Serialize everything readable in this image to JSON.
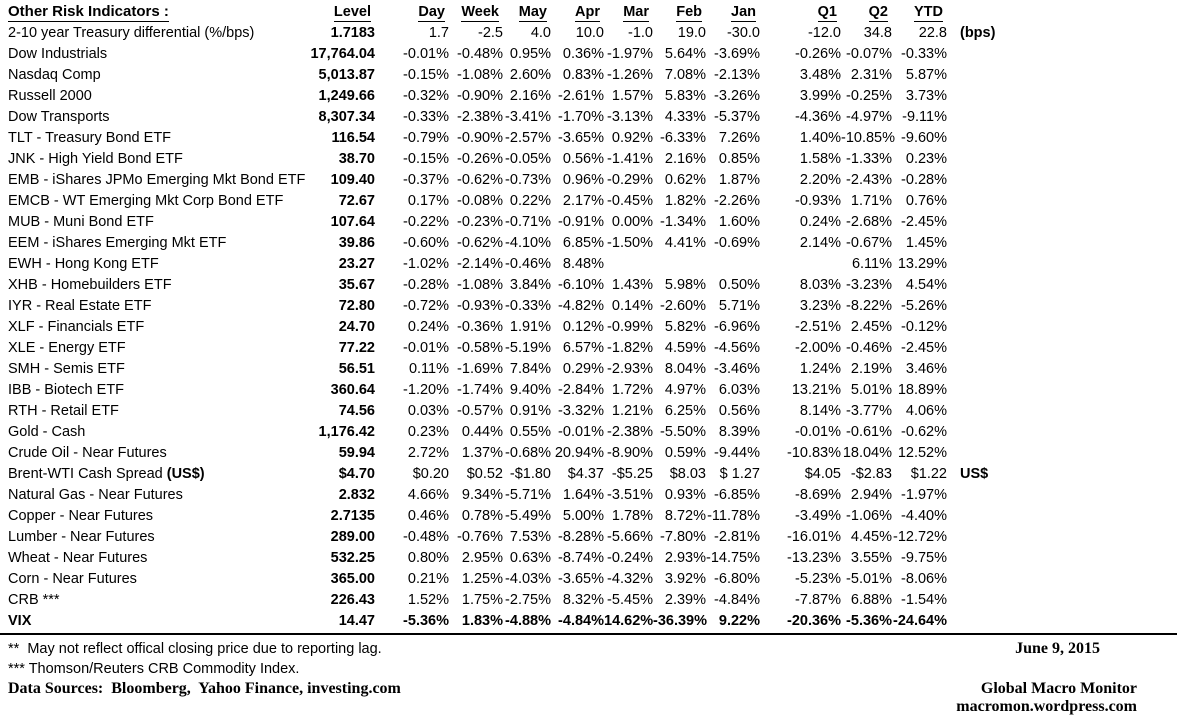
{
  "colors": {
    "text": "#000000",
    "background": "#ffffff"
  },
  "table": {
    "title": "Other Risk Indicators :",
    "columns": [
      "Level",
      "Day",
      "Week",
      "May",
      "Apr",
      "Mar",
      "Feb",
      "Jan",
      "Q1",
      "Q2",
      "YTD"
    ],
    "rows": [
      {
        "label": "2-10 year Treasury differential (%/bps)",
        "level": "1.7183",
        "values": [
          "1.7",
          "-2.5",
          "4.0",
          "10.0",
          "-1.0",
          "19.0",
          "-30.0",
          "-12.0",
          "34.8",
          "22.8"
        ],
        "note": "(bps)"
      },
      {
        "label": "Dow Industrials",
        "level": "17,764.04",
        "values": [
          "-0.01%",
          "-0.48%",
          "0.95%",
          "0.36%",
          "-1.97%",
          "5.64%",
          "-3.69%",
          "-0.26%",
          "-0.07%",
          "-0.33%"
        ],
        "note": ""
      },
      {
        "label": "Nasdaq Comp",
        "level": "5,013.87",
        "values": [
          "-0.15%",
          "-1.08%",
          "2.60%",
          "0.83%",
          "-1.26%",
          "7.08%",
          "-2.13%",
          "3.48%",
          "2.31%",
          "5.87%"
        ],
        "note": ""
      },
      {
        "label": "Russell 2000",
        "level": "1,249.66",
        "values": [
          "-0.32%",
          "-0.90%",
          "2.16%",
          "-2.61%",
          "1.57%",
          "5.83%",
          "-3.26%",
          "3.99%",
          "-0.25%",
          "3.73%"
        ],
        "note": ""
      },
      {
        "label": "Dow Transports",
        "level": "8,307.34",
        "values": [
          "-0.33%",
          "-2.38%",
          "-3.41%",
          "-1.70%",
          "-3.13%",
          "4.33%",
          "-5.37%",
          "-4.36%",
          "-4.97%",
          "-9.11%"
        ],
        "note": ""
      },
      {
        "label": "TLT - Treasury Bond ETF",
        "level": "116.54",
        "values": [
          "-0.79%",
          "-0.90%",
          "-2.57%",
          "-3.65%",
          "0.92%",
          "-6.33%",
          "7.26%",
          "1.40%",
          "-10.85%",
          "-9.60%"
        ],
        "note": ""
      },
      {
        "label": "JNK - High Yield Bond ETF",
        "level": "38.70",
        "values": [
          "-0.15%",
          "-0.26%",
          "-0.05%",
          "0.56%",
          "-1.41%",
          "2.16%",
          "0.85%",
          "1.58%",
          "-1.33%",
          "0.23%"
        ],
        "note": ""
      },
      {
        "label": "EMB - iShares JPMo Emerging Mkt Bond ETF",
        "level": "109.40",
        "values": [
          "-0.37%",
          "-0.62%",
          "-0.73%",
          "0.96%",
          "-0.29%",
          "0.62%",
          "1.87%",
          "2.20%",
          "-2.43%",
          "-0.28%"
        ],
        "note": ""
      },
      {
        "label": "EMCB - WT Emerging Mkt Corp Bond ETF",
        "level": "72.67",
        "values": [
          "0.17%",
          "-0.08%",
          "0.22%",
          "2.17%",
          "-0.45%",
          "1.82%",
          "-2.26%",
          "-0.93%",
          "1.71%",
          "0.76%"
        ],
        "note": ""
      },
      {
        "label": "MUB - Muni Bond ETF",
        "level": "107.64",
        "values": [
          "-0.22%",
          "-0.23%",
          "-0.71%",
          "-0.91%",
          "0.00%",
          "-1.34%",
          "1.60%",
          "0.24%",
          "-2.68%",
          "-2.45%"
        ],
        "note": ""
      },
      {
        "label": "EEM - iShares Emerging Mkt ETF",
        "level": "39.86",
        "values": [
          "-0.60%",
          "-0.62%",
          "-4.10%",
          "6.85%",
          "-1.50%",
          "4.41%",
          "-0.69%",
          "2.14%",
          "-0.67%",
          "1.45%"
        ],
        "note": ""
      },
      {
        "label": "EWH - Hong Kong ETF",
        "level": "23.27",
        "values": [
          "-1.02%",
          "-2.14%",
          "-0.46%",
          "8.48%",
          "",
          "",
          "",
          "",
          "6.11%",
          "13.29%"
        ],
        "note": ""
      },
      {
        "label": "XHB - Homebuilders ETF",
        "level": "35.67",
        "values": [
          "-0.28%",
          "-1.08%",
          "3.84%",
          "-6.10%",
          "1.43%",
          "5.98%",
          "0.50%",
          "8.03%",
          "-3.23%",
          "4.54%"
        ],
        "note": ""
      },
      {
        "label": "IYR - Real Estate ETF",
        "level": "72.80",
        "values": [
          "-0.72%",
          "-0.93%",
          "-0.33%",
          "-4.82%",
          "0.14%",
          "-2.60%",
          "5.71%",
          "3.23%",
          "-8.22%",
          "-5.26%"
        ],
        "note": ""
      },
      {
        "label": "XLF - Financials ETF",
        "level": "24.70",
        "values": [
          "0.24%",
          "-0.36%",
          "1.91%",
          "0.12%",
          "-0.99%",
          "5.82%",
          "-6.96%",
          "-2.51%",
          "2.45%",
          "-0.12%"
        ],
        "note": ""
      },
      {
        "label": "XLE - Energy ETF",
        "level": "77.22",
        "values": [
          "-0.01%",
          "-0.58%",
          "-5.19%",
          "6.57%",
          "-1.82%",
          "4.59%",
          "-4.56%",
          "-2.00%",
          "-0.46%",
          "-2.45%"
        ],
        "note": ""
      },
      {
        "label": "SMH - Semis ETF",
        "level": "56.51",
        "values": [
          "0.11%",
          "-1.69%",
          "7.84%",
          "0.29%",
          "-2.93%",
          "8.04%",
          "-3.46%",
          "1.24%",
          "2.19%",
          "3.46%"
        ],
        "note": ""
      },
      {
        "label": "IBB - Biotech ETF",
        "level": "360.64",
        "values": [
          "-1.20%",
          "-1.74%",
          "9.40%",
          "-2.84%",
          "1.72%",
          "4.97%",
          "6.03%",
          "13.21%",
          "5.01%",
          "18.89%"
        ],
        "note": ""
      },
      {
        "label": "RTH - Retail ETF",
        "level": "74.56",
        "values": [
          "0.03%",
          "-0.57%",
          "0.91%",
          "-3.32%",
          "1.21%",
          "6.25%",
          "0.56%",
          "8.14%",
          "-3.77%",
          "4.06%"
        ],
        "note": ""
      },
      {
        "label": "Gold - Cash",
        "level": "1,176.42",
        "values": [
          "0.23%",
          "0.44%",
          "0.55%",
          "-0.01%",
          "-2.38%",
          "-5.50%",
          "8.39%",
          "-0.01%",
          "-0.61%",
          "-0.62%"
        ],
        "note": ""
      },
      {
        "label": "Crude Oil - Near Futures",
        "level": "59.94",
        "values": [
          "2.72%",
          "1.37%",
          "-0.68%",
          "20.94%",
          "-8.90%",
          "0.59%",
          "-9.44%",
          "-10.83%",
          "18.04%",
          "12.52%"
        ],
        "note": ""
      },
      {
        "label": "Brent-WTI Cash Spread ",
        "label_bold": "(US$)",
        "level": "$4.70",
        "values": [
          "$0.20",
          "$0.52",
          "-$1.80",
          "$4.37",
          "-$5.25",
          "$8.03",
          "$ 1.27",
          "$4.05",
          "-$2.83",
          "$1.22"
        ],
        "note": "US$"
      },
      {
        "label": "Natural Gas - Near Futures",
        "level": "2.832",
        "values": [
          "4.66%",
          "9.34%",
          "-5.71%",
          "1.64%",
          "-3.51%",
          "0.93%",
          "-6.85%",
          "-8.69%",
          "2.94%",
          "-1.97%"
        ],
        "note": ""
      },
      {
        "label": "Copper - Near Futures",
        "level": "2.7135",
        "values": [
          "0.46%",
          "0.78%",
          "-5.49%",
          "5.00%",
          "1.78%",
          "8.72%",
          "-11.78%",
          "-3.49%",
          "-1.06%",
          "-4.40%"
        ],
        "note": ""
      },
      {
        "label": "Lumber - Near Futures",
        "level": "289.00",
        "values": [
          "-0.48%",
          "-0.76%",
          "7.53%",
          "-8.28%",
          "-5.66%",
          "-7.80%",
          "-2.81%",
          "-16.01%",
          "4.45%",
          "-12.72%"
        ],
        "note": ""
      },
      {
        "label": "Wheat - Near Futures",
        "level": "532.25",
        "values": [
          "0.80%",
          "2.95%",
          "0.63%",
          "-8.74%",
          "-0.24%",
          "2.93%",
          "-14.75%",
          "-13.23%",
          "3.55%",
          "-9.75%"
        ],
        "note": ""
      },
      {
        "label": "Corn - Near Futures",
        "level": "365.00",
        "values": [
          "0.21%",
          "1.25%",
          "-4.03%",
          "-3.65%",
          "-4.32%",
          "3.92%",
          "-6.80%",
          "-5.23%",
          "-5.01%",
          "-8.06%"
        ],
        "note": ""
      },
      {
        "label": "CRB ***",
        "level": "226.43",
        "values": [
          "1.52%",
          "1.75%",
          "-2.75%",
          "8.32%",
          "-5.45%",
          "2.39%",
          "-4.84%",
          "-7.87%",
          "6.88%",
          "-1.54%"
        ],
        "note": ""
      },
      {
        "label": "VIX",
        "bold": true,
        "level": "14.47",
        "values": [
          "-5.36%",
          "1.83%",
          "-4.88%",
          "-4.84%",
          "14.62%",
          "-36.39%",
          "9.22%",
          "-20.36%",
          "-5.36%",
          "-24.64%"
        ],
        "note": ""
      }
    ]
  },
  "footer": {
    "footnote_2star": "**  May not reflect offical closing price due to reporting lag.",
    "footnote_3star": "*** Thomson/Reuters CRB Commodity Index.",
    "data_sources": "Data Sources:  Bloomberg,  Yahoo Finance, investing.com",
    "date": "June 9, 2015",
    "brand": "Global Macro Monitor",
    "url": "macromon.wordpress.com"
  }
}
